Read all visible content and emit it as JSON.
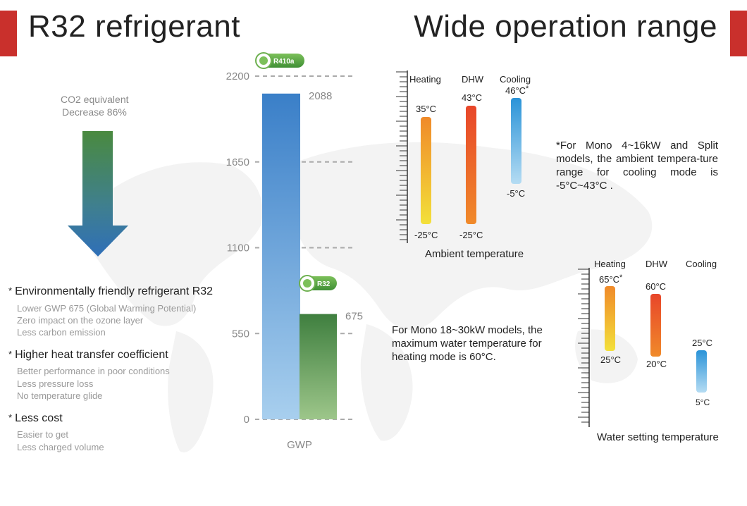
{
  "header": {
    "left_title": "R32 refrigerant",
    "right_title": "Wide operation range"
  },
  "co2": {
    "line1": "CO2 equivalent",
    "line2": "Decrease 86%"
  },
  "features": [
    {
      "title": "Environmentally friendly refrigerant R32",
      "lines": [
        "Lower GWP 675 (Global Warming Potential)",
        "Zero impact on the ozone layer",
        "Less carbon emission"
      ]
    },
    {
      "title": "Higher heat transfer coefficient",
      "lines": [
        "Better performance in poor conditions",
        "Less pressure loss",
        "No temperature glide"
      ]
    },
    {
      "title": "Less cost",
      "lines": [
        "Easier to get",
        "Less charged volume"
      ]
    }
  ],
  "chart_data": {
    "type": "bar",
    "categories": [
      "R410a",
      "R32"
    ],
    "values": [
      2088,
      675
    ],
    "value_labels": [
      "2088",
      "675"
    ],
    "badge_labels": [
      "R410a",
      "R32"
    ],
    "yticks": [
      0,
      550,
      1100,
      1650,
      2200
    ],
    "ytick_labels": [
      "0",
      "550",
      "1100",
      "1650",
      "2200"
    ],
    "ylim": [
      0,
      2200
    ],
    "xlabel": "GWP",
    "grid": "dashed",
    "colors": {
      "r410a_top": "#3a7fc8",
      "r410a_bottom": "#a8cfee",
      "r32_top": "#3f7f3f",
      "r32_bottom": "#9dc68a"
    }
  },
  "ambient": {
    "columns": [
      "Heating",
      "DHW",
      "Cooling"
    ],
    "ranges": [
      {
        "max": "35°C",
        "min": "-25°C",
        "max_value": 35,
        "min_value": -25
      },
      {
        "max": "43°C",
        "min": "-25°C",
        "max_value": 43,
        "min_value": -25
      },
      {
        "max": "46°C",
        "min": "-5°C",
        "max_value": 46,
        "min_value": -5,
        "marker": "*"
      }
    ],
    "caption": "Ambient temperature",
    "footnote": "*For Mono 4~16kW and Split models, the ambient tempera-ture range for cooling mode is -5°C~43°C ."
  },
  "water": {
    "columns": [
      "Heating",
      "DHW",
      "Cooling"
    ],
    "ranges": [
      {
        "max": "65°C",
        "min": "25°C",
        "max_value": 65,
        "min_value": 25,
        "marker": "*"
      },
      {
        "max": "60°C",
        "min": "20°C",
        "max_value": 60,
        "min_value": 20
      },
      {
        "max": "25°C",
        "min": "5°C",
        "max_value": 25,
        "min_value": 5
      }
    ],
    "caption": "Water setting temperature",
    "note": "For Mono 18~30kW models, the maximum water temperature for heating mode is 60°C."
  }
}
